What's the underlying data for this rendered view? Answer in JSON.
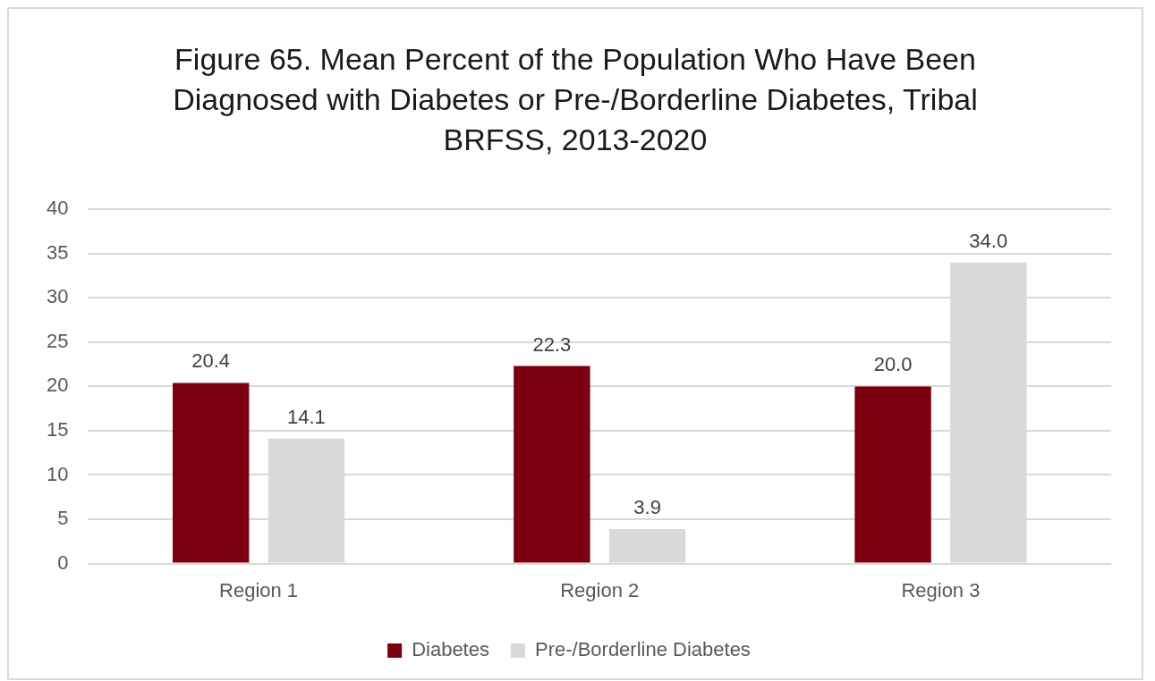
{
  "chart_data": {
    "type": "bar",
    "title": "Figure 65. Mean Percent of the Population Who Have Been Diagnosed with Diabetes or Pre-/Borderline Diabetes, Tribal BRFSS, 2013-2020",
    "categories": [
      "Region 1",
      "Region 2",
      "Region 3"
    ],
    "series": [
      {
        "name": "Diabetes",
        "color": "#7b000f",
        "values": [
          20.4,
          22.3,
          20.0
        ],
        "value_labels": [
          "20.4",
          "22.3",
          "20.0"
        ]
      },
      {
        "name": "Pre-/Borderline Diabetes",
        "color": "#d9d9d9",
        "values": [
          14.1,
          3.9,
          34.0
        ],
        "value_labels": [
          "14.1",
          "3.9",
          "34.0"
        ]
      }
    ],
    "ylim": [
      0,
      40
    ],
    "yticks": [
      0,
      5,
      10,
      15,
      20,
      25,
      30,
      35,
      40
    ],
    "grid": "y",
    "legend": "bottom"
  }
}
